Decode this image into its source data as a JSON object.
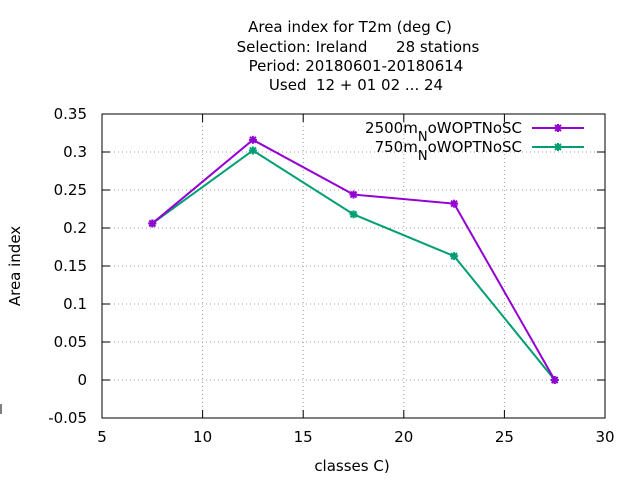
{
  "chart_data": {
    "type": "line",
    "title_lines": [
      "Area index  for T2m (deg C)",
      "Selection: Ireland      28 stations",
      "Period: 20180601-20180614",
      "Used  12 + 01 02 ... 24"
    ],
    "xlabel": "classes C)",
    "ylabel": "Area index",
    "xlim": [
      5,
      30
    ],
    "ylim": [
      -0.05,
      0.35
    ],
    "xticks": [
      5,
      10,
      15,
      20,
      25,
      30
    ],
    "yticks": [
      -0.05,
      0,
      0.05,
      0.1,
      0.15,
      0.2,
      0.25,
      0.3,
      0.35
    ],
    "xtick_labels": [
      "5",
      "10",
      "15",
      "20",
      "25",
      "30"
    ],
    "ytick_labels": [
      "-0.05",
      "0",
      "0.05",
      "0.1",
      "0.15",
      "0.2",
      "0.25",
      "0.3",
      "0.35"
    ],
    "grid": true,
    "legend_position": "top-right",
    "series": [
      {
        "name_main": "2500m",
        "name_sub": "N",
        "name_rest": "oWOPTNoSC",
        "color": "#9400d3",
        "x": [
          7.5,
          12.5,
          17.5,
          22.5,
          27.5
        ],
        "y": [
          0.206,
          0.316,
          0.244,
          0.232,
          0.0
        ]
      },
      {
        "name_main": "750m",
        "name_sub": "N",
        "name_rest": "oWOPTNoSC",
        "color": "#009e73",
        "x": [
          7.5,
          12.5,
          17.5,
          22.5,
          27.5
        ],
        "y": [
          0.206,
          0.302,
          0.218,
          0.163,
          0.0
        ]
      }
    ]
  }
}
